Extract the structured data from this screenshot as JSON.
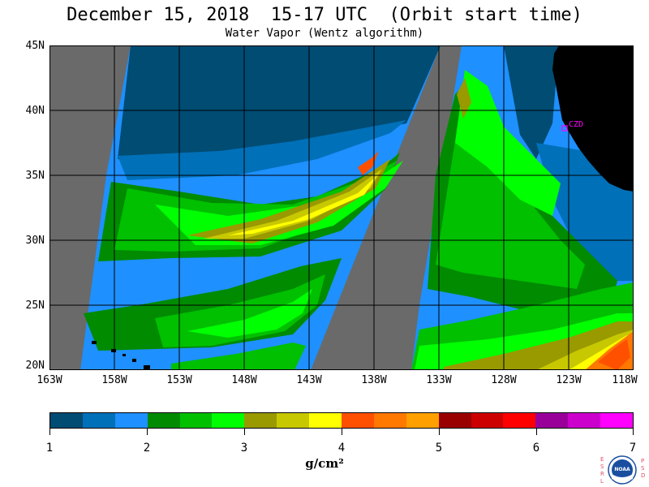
{
  "title": "December 15, 2018  15-17 UTC  (Orbit start time)",
  "subtitle": "Water Vapor (Wentz algorithm)",
  "station_label": "CZD",
  "lat_labels": [
    "45N",
    "40N",
    "35N",
    "30N",
    "25N",
    "20N"
  ],
  "lon_labels": [
    "163W",
    "158W",
    "153W",
    "148W",
    "143W",
    "138W",
    "133W",
    "128W",
    "123W",
    "118W"
  ],
  "colorbar": {
    "tick_labels": [
      "1",
      "2",
      "3",
      "4",
      "5",
      "6",
      "7"
    ],
    "units": "g/cm²",
    "colors": [
      "#004c73",
      "#0070b8",
      "#1e90ff",
      "#008b00",
      "#00c000",
      "#00ff00",
      "#999900",
      "#c8c800",
      "#ffff00",
      "#ff5000",
      "#ff7800",
      "#ffa000",
      "#990000",
      "#cc0000",
      "#ff0000",
      "#990099",
      "#cc00cc",
      "#ff00ff"
    ]
  },
  "logo": {
    "left_letters": "ESRL",
    "right_letters": "PSD",
    "center_text": "NOAA"
  },
  "colors": {
    "land": "#000000",
    "no_data": "#6a6a6a",
    "grid": "#000000",
    "station": "#ff00ff"
  }
}
